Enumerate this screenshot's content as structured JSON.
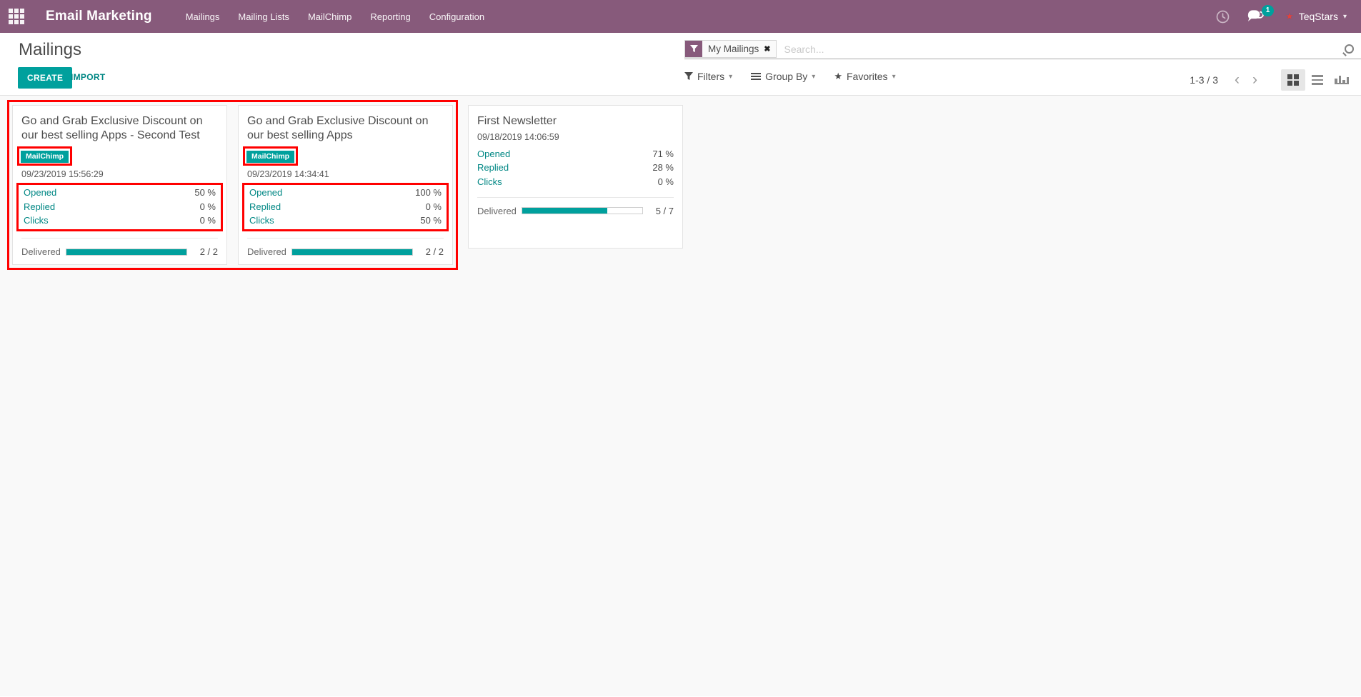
{
  "navbar": {
    "app_name": "Email Marketing",
    "menu": [
      "Mailings",
      "Mailing Lists",
      "MailChimp",
      "Reporting",
      "Configuration"
    ],
    "systray": {
      "message_count": "1",
      "user_name": "TeqStars"
    }
  },
  "control_panel": {
    "title": "Mailings",
    "create_label": "CREATE",
    "import_label": "IMPORT",
    "search": {
      "facet_label": "My Mailings",
      "placeholder": "Search..."
    },
    "filters_label": "Filters",
    "group_by_label": "Group By",
    "favorites_label": "Favorites",
    "pager": "1-3 / 3"
  },
  "cards": [
    {
      "title": "Go and Grab Exclusive Discount on our best selling Apps - Second Test",
      "badge": "MailChimp",
      "date": "09/23/2019 15:56:29",
      "stats": [
        {
          "label": "Opened",
          "value": "50 %"
        },
        {
          "label": "Replied",
          "value": "0 %"
        },
        {
          "label": "Clicks",
          "value": "0 %"
        }
      ],
      "delivered_label": "Delivered",
      "delivered_value": "2 / 2",
      "delivered_pct": 100
    },
    {
      "title": "Go and Grab Exclusive Discount on our best selling Apps",
      "badge": "MailChimp",
      "date": "09/23/2019 14:34:41",
      "stats": [
        {
          "label": "Opened",
          "value": "100 %"
        },
        {
          "label": "Replied",
          "value": "0 %"
        },
        {
          "label": "Clicks",
          "value": "50 %"
        }
      ],
      "delivered_label": "Delivered",
      "delivered_value": "2 / 2",
      "delivered_pct": 100
    },
    {
      "title": "First Newsletter",
      "date": "09/18/2019 14:06:59",
      "stats": [
        {
          "label": "Opened",
          "value": "71 %"
        },
        {
          "label": "Replied",
          "value": "28 %"
        },
        {
          "label": "Clicks",
          "value": "0 %"
        }
      ],
      "delivered_label": "Delivered",
      "delivered_value": "5 / 7",
      "delivered_pct": 71
    }
  ],
  "icons": {
    "star": "★",
    "caret_down": "▾",
    "close": "✖",
    "chevron_left": "‹",
    "chevron_right": "›"
  },
  "colors": {
    "navbar_bg": "#875A7B",
    "accent_teal": "#00A09D",
    "link_teal": "#008784",
    "annotation_red": "#FF0000"
  }
}
